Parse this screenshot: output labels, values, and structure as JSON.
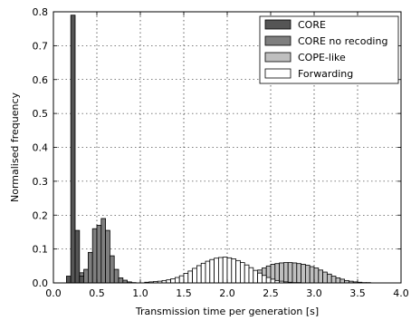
{
  "chart_data": {
    "type": "bar",
    "xlabel": "Transmission time per generation [s]",
    "ylabel": "Normalised frequency",
    "xlim": [
      0.0,
      4.0
    ],
    "ylim": [
      0.0,
      0.8
    ],
    "x_ticks": [
      "0.0",
      "0.5",
      "1.0",
      "1.5",
      "2.0",
      "2.5",
      "3.0",
      "3.5",
      "4.0"
    ],
    "y_ticks": [
      "0.0",
      "0.1",
      "0.2",
      "0.3",
      "0.4",
      "0.5",
      "0.6",
      "0.7",
      "0.8"
    ],
    "grid": true,
    "legend_position": "top-right",
    "series": [
      {
        "name": "CORE",
        "color": "#555555",
        "bin_width": 0.05,
        "x": [
          0.15,
          0.2,
          0.25,
          0.3
        ],
        "values": [
          0.02,
          0.79,
          0.155,
          0.02
        ]
      },
      {
        "name": "CORE no recoding",
        "color": "#7f7f7f",
        "bin_width": 0.05,
        "x": [
          0.3,
          0.35,
          0.4,
          0.45,
          0.5,
          0.55,
          0.6,
          0.65,
          0.7,
          0.75,
          0.8,
          0.85,
          0.9
        ],
        "values": [
          0.03,
          0.04,
          0.09,
          0.16,
          0.17,
          0.19,
          0.155,
          0.08,
          0.04,
          0.015,
          0.008,
          0.003,
          0.001
        ]
      },
      {
        "name": "COPE-like",
        "color": "#bfbfbf",
        "bin_width": 0.05,
        "x": [
          1.5,
          1.55,
          1.6,
          1.65,
          1.7,
          1.75,
          1.8,
          1.85,
          1.9,
          1.95,
          2.0,
          2.05,
          2.1,
          2.15,
          2.2,
          2.25,
          2.3,
          2.35,
          2.4,
          2.45,
          2.5,
          2.55,
          2.6,
          2.65,
          2.7,
          2.75,
          2.8,
          2.85,
          2.9,
          2.95,
          3.0,
          3.05,
          3.1,
          3.15,
          3.2,
          3.25,
          3.3,
          3.35,
          3.4,
          3.45,
          3.5,
          3.55,
          3.6
        ],
        "values": [
          0.001,
          0.002,
          0.003,
          0.004,
          0.005,
          0.006,
          0.007,
          0.008,
          0.009,
          0.01,
          0.012,
          0.014,
          0.016,
          0.019,
          0.022,
          0.026,
          0.031,
          0.038,
          0.044,
          0.05,
          0.055,
          0.057,
          0.059,
          0.06,
          0.06,
          0.059,
          0.057,
          0.055,
          0.052,
          0.048,
          0.044,
          0.038,
          0.032,
          0.026,
          0.02,
          0.015,
          0.011,
          0.007,
          0.005,
          0.003,
          0.002,
          0.001,
          0.001
        ]
      },
      {
        "name": "Forwarding",
        "color": "#ffffff",
        "bin_width": 0.05,
        "x": [
          1.05,
          1.1,
          1.15,
          1.2,
          1.25,
          1.3,
          1.35,
          1.4,
          1.45,
          1.5,
          1.55,
          1.6,
          1.65,
          1.7,
          1.75,
          1.8,
          1.85,
          1.9,
          1.95,
          2.0,
          2.05,
          2.1,
          2.15,
          2.2,
          2.25,
          2.3,
          2.35,
          2.4,
          2.45,
          2.5,
          2.55,
          2.6,
          2.65,
          2.7,
          2.75,
          2.8
        ],
        "values": [
          0.002,
          0.003,
          0.004,
          0.005,
          0.007,
          0.009,
          0.012,
          0.016,
          0.021,
          0.028,
          0.035,
          0.043,
          0.051,
          0.058,
          0.064,
          0.069,
          0.073,
          0.075,
          0.076,
          0.074,
          0.071,
          0.066,
          0.06,
          0.053,
          0.045,
          0.037,
          0.029,
          0.022,
          0.016,
          0.011,
          0.007,
          0.005,
          0.003,
          0.002,
          0.001,
          0.001
        ]
      }
    ]
  }
}
